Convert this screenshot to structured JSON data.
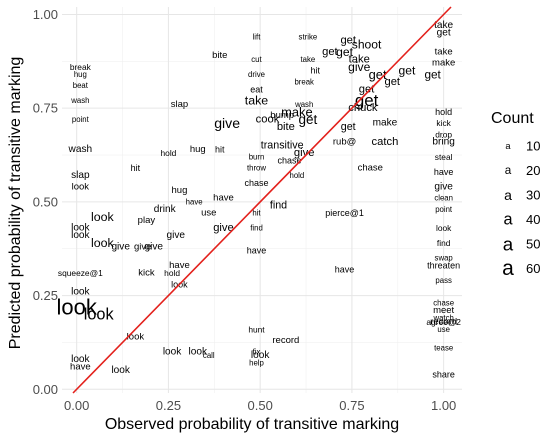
{
  "chart_data": {
    "type": "scatter",
    "xlabel": "Observed probability of transitive marking",
    "ylabel": "Predicted probability of transitive marking",
    "xlim": [
      -0.04,
      1.05
    ],
    "ylim": [
      -0.01,
      1.02
    ],
    "x_ticks": [
      0.0,
      0.25,
      0.5,
      0.75,
      1.0
    ],
    "x_tick_labels": [
      "0.00",
      "0.25",
      "0.50",
      "0.75",
      "1.00"
    ],
    "y_ticks": [
      0.0,
      0.25,
      0.5,
      0.75,
      1.0
    ],
    "y_tick_labels": [
      "0.00",
      "0.25",
      "0.50",
      "0.75",
      "1.00"
    ],
    "grid": true,
    "reference_line": {
      "slope": 1,
      "intercept": 0,
      "color": "#e3211c"
    },
    "legend": {
      "title": "Count",
      "placement": "right",
      "key_glyph": "a",
      "entries": [
        10,
        20,
        30,
        40,
        50,
        60
      ]
    },
    "points": [
      {
        "label": "get",
        "x": 0.73,
        "y": 0.9,
        "count": 25
      },
      {
        "label": "shoot",
        "x": 0.79,
        "y": 0.92,
        "count": 25
      },
      {
        "label": "get",
        "x": 0.74,
        "y": 0.93,
        "count": 22
      },
      {
        "label": "get",
        "x": 0.69,
        "y": 0.9,
        "count": 22
      },
      {
        "label": "take",
        "x": 0.77,
        "y": 0.88,
        "count": 22
      },
      {
        "label": "give",
        "x": 0.77,
        "y": 0.86,
        "count": 25
      },
      {
        "label": "get",
        "x": 0.82,
        "y": 0.84,
        "count": 28
      },
      {
        "label": "get",
        "x": 0.86,
        "y": 0.82,
        "count": 22
      },
      {
        "label": "get",
        "x": 0.9,
        "y": 0.85,
        "count": 25
      },
      {
        "label": "get",
        "x": 0.79,
        "y": 0.8,
        "count": 22
      },
      {
        "label": "get",
        "x": 0.79,
        "y": 0.77,
        "count": 42
      },
      {
        "label": "chuck",
        "x": 0.78,
        "y": 0.75,
        "count": 22
      },
      {
        "label": "make",
        "x": 0.84,
        "y": 0.71,
        "count": 18
      },
      {
        "label": "get",
        "x": 0.74,
        "y": 0.7,
        "count": 20
      },
      {
        "label": "catch",
        "x": 0.84,
        "y": 0.66,
        "count": 22
      },
      {
        "label": "rub@",
        "x": 0.73,
        "y": 0.66,
        "count": 16
      },
      {
        "label": "chase",
        "x": 0.8,
        "y": 0.59,
        "count": 16
      },
      {
        "label": "make",
        "x": 0.6,
        "y": 0.74,
        "count": 28
      },
      {
        "label": "get",
        "x": 0.63,
        "y": 0.72,
        "count": 30
      },
      {
        "label": "bite",
        "x": 0.57,
        "y": 0.7,
        "count": 22
      },
      {
        "label": "take",
        "x": 0.49,
        "y": 0.77,
        "count": 26
      },
      {
        "label": "give",
        "x": 0.41,
        "y": 0.71,
        "count": 32
      },
      {
        "label": "cook",
        "x": 0.52,
        "y": 0.72,
        "count": 22
      },
      {
        "label": "bump",
        "x": 0.56,
        "y": 0.73,
        "count": 16
      },
      {
        "label": "give",
        "x": 0.62,
        "y": 0.63,
        "count": 22
      },
      {
        "label": "chase",
        "x": 0.58,
        "y": 0.61,
        "count": 14
      },
      {
        "label": "transitive",
        "x": 0.56,
        "y": 0.65,
        "count": 20
      },
      {
        "label": "eat",
        "x": 0.49,
        "y": 0.8,
        "count": 14
      },
      {
        "label": "wash",
        "x": 0.62,
        "y": 0.76,
        "count": 10
      },
      {
        "label": "hit",
        "x": 0.65,
        "y": 0.85,
        "count": 14
      },
      {
        "label": "take",
        "x": 0.63,
        "y": 0.88,
        "count": 10
      },
      {
        "label": "break",
        "x": 0.62,
        "y": 0.82,
        "count": 10
      },
      {
        "label": "strike",
        "x": 0.63,
        "y": 0.94,
        "count": 10
      },
      {
        "label": "lift",
        "x": 0.49,
        "y": 0.94,
        "count": 10
      },
      {
        "label": "cut",
        "x": 0.49,
        "y": 0.88,
        "count": 10
      },
      {
        "label": "drive",
        "x": 0.49,
        "y": 0.84,
        "count": 10
      },
      {
        "label": "burn",
        "x": 0.49,
        "y": 0.62,
        "count": 10
      },
      {
        "label": "throw",
        "x": 0.49,
        "y": 0.59,
        "count": 10
      },
      {
        "label": "chase",
        "x": 0.49,
        "y": 0.55,
        "count": 14
      },
      {
        "label": "hold",
        "x": 0.6,
        "y": 0.57,
        "count": 10
      },
      {
        "label": "find",
        "x": 0.55,
        "y": 0.49,
        "count": 20
      },
      {
        "label": "hit",
        "x": 0.49,
        "y": 0.47,
        "count": 10
      },
      {
        "label": "find",
        "x": 0.49,
        "y": 0.43,
        "count": 10
      },
      {
        "label": "pierce@1",
        "x": 0.73,
        "y": 0.47,
        "count": 14
      },
      {
        "label": "have",
        "x": 0.73,
        "y": 0.32,
        "count": 14
      },
      {
        "label": "have",
        "x": 0.49,
        "y": 0.37,
        "count": 14
      },
      {
        "label": "have",
        "x": 0.4,
        "y": 0.51,
        "count": 16
      },
      {
        "label": "use",
        "x": 0.36,
        "y": 0.47,
        "count": 16
      },
      {
        "label": "give",
        "x": 0.4,
        "y": 0.43,
        "count": 22
      },
      {
        "label": "give",
        "x": 0.27,
        "y": 0.41,
        "count": 18
      },
      {
        "label": "give",
        "x": 0.21,
        "y": 0.38,
        "count": 18
      },
      {
        "label": "drink",
        "x": 0.24,
        "y": 0.48,
        "count": 18
      },
      {
        "label": "play",
        "x": 0.19,
        "y": 0.45,
        "count": 16
      },
      {
        "label": "hug",
        "x": 0.28,
        "y": 0.53,
        "count": 16
      },
      {
        "label": "have",
        "x": 0.32,
        "y": 0.5,
        "count": 10
      },
      {
        "label": "slap",
        "x": 0.28,
        "y": 0.76,
        "count": 16
      },
      {
        "label": "hit",
        "x": 0.16,
        "y": 0.59,
        "count": 14
      },
      {
        "label": "hold",
        "x": 0.25,
        "y": 0.63,
        "count": 12
      },
      {
        "label": "hug",
        "x": 0.33,
        "y": 0.64,
        "count": 16
      },
      {
        "label": "hit",
        "x": 0.39,
        "y": 0.64,
        "count": 14
      },
      {
        "label": "bite",
        "x": 0.39,
        "y": 0.89,
        "count": 16
      },
      {
        "label": "give",
        "x": 0.18,
        "y": 0.38,
        "count": 16
      },
      {
        "label": "give",
        "x": 0.12,
        "y": 0.38,
        "count": 18
      },
      {
        "label": "look",
        "x": 0.07,
        "y": 0.39,
        "count": 26
      },
      {
        "label": "look",
        "x": 0.07,
        "y": 0.46,
        "count": 26
      },
      {
        "label": "kick",
        "x": 0.19,
        "y": 0.31,
        "count": 16
      },
      {
        "label": "have",
        "x": 0.28,
        "y": 0.33,
        "count": 16
      },
      {
        "label": "hold",
        "x": 0.26,
        "y": 0.31,
        "count": 12
      },
      {
        "label": "look",
        "x": 0.28,
        "y": 0.28,
        "count": 14
      },
      {
        "label": "look",
        "x": 0.0,
        "y": 0.22,
        "count": 60
      },
      {
        "label": "look",
        "x": 0.06,
        "y": 0.2,
        "count": 40
      },
      {
        "label": "look",
        "x": 0.16,
        "y": 0.14,
        "count": 16
      },
      {
        "label": "look",
        "x": 0.33,
        "y": 0.1,
        "count": 18
      },
      {
        "label": "look",
        "x": 0.26,
        "y": 0.1,
        "count": 18
      },
      {
        "label": "look",
        "x": 0.12,
        "y": 0.05,
        "count": 18
      },
      {
        "label": "hunt",
        "x": 0.49,
        "y": 0.16,
        "count": 12
      },
      {
        "label": "record",
        "x": 0.57,
        "y": 0.13,
        "count": 16
      },
      {
        "label": "look",
        "x": 0.5,
        "y": 0.09,
        "count": 18
      },
      {
        "label": "help",
        "x": 0.49,
        "y": 0.07,
        "count": 10
      },
      {
        "label": "fix",
        "x": 0.49,
        "y": 0.1,
        "count": 10
      },
      {
        "label": "call",
        "x": 0.36,
        "y": 0.09,
        "count": 10
      },
      {
        "label": "wash",
        "x": 0.01,
        "y": 0.64,
        "count": 18
      },
      {
        "label": "slap",
        "x": 0.01,
        "y": 0.57,
        "count": 18
      },
      {
        "label": "look",
        "x": 0.01,
        "y": 0.54,
        "count": 16
      },
      {
        "label": "look",
        "x": 0.01,
        "y": 0.43,
        "count": 18
      },
      {
        "label": "look",
        "x": 0.01,
        "y": 0.41,
        "count": 18
      },
      {
        "label": "look",
        "x": 0.01,
        "y": 0.26,
        "count": 18
      },
      {
        "label": "have",
        "x": 0.01,
        "y": 0.06,
        "count": 16
      },
      {
        "label": "look",
        "x": 0.01,
        "y": 0.08,
        "count": 18
      },
      {
        "label": "squeeze@1",
        "x": 0.01,
        "y": 0.31,
        "count": 12
      },
      {
        "label": "point",
        "x": 0.01,
        "y": 0.72,
        "count": 10
      },
      {
        "label": "wash",
        "x": 0.01,
        "y": 0.77,
        "count": 10
      },
      {
        "label": "break",
        "x": 0.01,
        "y": 0.86,
        "count": 12
      },
      {
        "label": "hug",
        "x": 0.01,
        "y": 0.84,
        "count": 10
      },
      {
        "label": "beat",
        "x": 0.01,
        "y": 0.81,
        "count": 10
      },
      {
        "label": "take",
        "x": 1.0,
        "y": 0.97,
        "count": 18
      },
      {
        "label": "get",
        "x": 1.0,
        "y": 0.95,
        "count": 18
      },
      {
        "label": "bring",
        "x": 1.0,
        "y": 0.66,
        "count": 18
      },
      {
        "label": "steal",
        "x": 1.0,
        "y": 0.62,
        "count": 12
      },
      {
        "label": "give",
        "x": 1.0,
        "y": 0.54,
        "count": 18
      },
      {
        "label": "clean",
        "x": 1.0,
        "y": 0.51,
        "count": 10
      },
      {
        "label": "point",
        "x": 1.0,
        "y": 0.48,
        "count": 10
      },
      {
        "label": "find",
        "x": 1.0,
        "y": 0.39,
        "count": 12
      },
      {
        "label": "swap",
        "x": 1.0,
        "y": 0.35,
        "count": 10
      },
      {
        "label": "threaten",
        "x": 1.0,
        "y": 0.33,
        "count": 14
      },
      {
        "label": "pass",
        "x": 1.0,
        "y": 0.29,
        "count": 10
      },
      {
        "label": "chase",
        "x": 1.0,
        "y": 0.23,
        "count": 10
      },
      {
        "label": "meet",
        "x": 1.0,
        "y": 0.21,
        "count": 16
      },
      {
        "label": "watch",
        "x": 1.0,
        "y": 0.19,
        "count": 10
      },
      {
        "label": "agree@2",
        "x": 1.0,
        "y": 0.18,
        "count": 12
      },
      {
        "label": "record",
        "x": 1.0,
        "y": 0.18,
        "count": 16
      },
      {
        "label": "use",
        "x": 1.0,
        "y": 0.16,
        "count": 10
      },
      {
        "label": "tease",
        "x": 1.0,
        "y": 0.11,
        "count": 10
      },
      {
        "label": "share",
        "x": 1.0,
        "y": 0.04,
        "count": 14
      },
      {
        "label": "get",
        "x": 0.97,
        "y": 0.84,
        "count": 24
      },
      {
        "label": "take",
        "x": 1.0,
        "y": 0.9,
        "count": 16
      },
      {
        "label": "make",
        "x": 1.0,
        "y": 0.87,
        "count": 16
      },
      {
        "label": "hold",
        "x": 1.0,
        "y": 0.74,
        "count": 14
      },
      {
        "label": "kick",
        "x": 1.0,
        "y": 0.71,
        "count": 12
      },
      {
        "label": "drop",
        "x": 1.0,
        "y": 0.68,
        "count": 12
      },
      {
        "label": "look",
        "x": 1.0,
        "y": 0.43,
        "count": 12
      },
      {
        "label": "have",
        "x": 1.0,
        "y": 0.58,
        "count": 14
      }
    ]
  }
}
